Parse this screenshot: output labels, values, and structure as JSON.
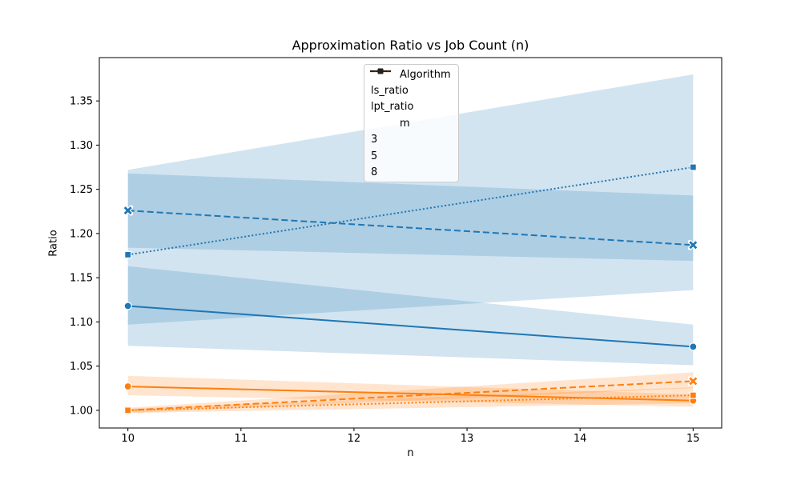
{
  "figure": {
    "background": "#ffffff"
  },
  "legend": {
    "algorithm_title": "Algorithm",
    "algorithms": [
      {
        "label": "ls_ratio",
        "color": "#1f77b4"
      },
      {
        "label": "lpt_ratio",
        "color": "#ff7f0e"
      }
    ],
    "m_title": "m",
    "m_entries": [
      {
        "label": "3",
        "linestyle": "solid",
        "marker": "circle"
      },
      {
        "label": "5",
        "linestyle": "dashed",
        "marker": "x"
      },
      {
        "label": "8",
        "linestyle": "dotted",
        "marker": "square"
      }
    ],
    "handle_color": "#222222",
    "border_color": "#cccccc"
  },
  "chart_data": {
    "type": "line",
    "title": "Approximation Ratio vs Job Count (n)",
    "xlabel": "n",
    "ylabel": "Ratio",
    "x": [
      10,
      15
    ],
    "xlim": [
      9.747,
      15.253
    ],
    "ylim": [
      0.98,
      1.399
    ],
    "xticks": [
      10,
      11,
      12,
      13,
      14,
      15
    ],
    "yticks": [
      1.0,
      1.05,
      1.1,
      1.15,
      1.2,
      1.25,
      1.3,
      1.35
    ],
    "grid": false,
    "legend_position": "upper center",
    "band_alpha": 0.2,
    "colors": {
      "ls_ratio": "#1f77b4",
      "lpt_ratio": "#ff7f0e"
    },
    "series": [
      {
        "name": "ls-ratio-m3",
        "algorithm": "ls_ratio",
        "m": 3,
        "color": "#1f77b4",
        "linestyle": "solid",
        "marker": "circle",
        "values": [
          1.118,
          1.072
        ],
        "ci_lower": [
          1.073,
          1.051
        ],
        "ci_upper": [
          1.163,
          1.097
        ]
      },
      {
        "name": "ls-ratio-m5",
        "algorithm": "ls_ratio",
        "m": 5,
        "color": "#1f77b4",
        "linestyle": "dashed",
        "marker": "x",
        "values": [
          1.226,
          1.187
        ],
        "ci_lower": [
          1.184,
          1.169
        ],
        "ci_upper": [
          1.268,
          1.243
        ]
      },
      {
        "name": "ls-ratio-m8",
        "algorithm": "ls_ratio",
        "m": 8,
        "color": "#1f77b4",
        "linestyle": "dotted",
        "marker": "square",
        "values": [
          1.176,
          1.275
        ],
        "ci_lower": [
          1.097,
          1.136
        ],
        "ci_upper": [
          1.272,
          1.38
        ]
      },
      {
        "name": "lpt-ratio-m3",
        "algorithm": "lpt_ratio",
        "m": 3,
        "color": "#ff7f0e",
        "linestyle": "solid",
        "marker": "circle",
        "values": [
          1.027,
          1.011
        ],
        "ci_lower": [
          1.017,
          1.004
        ],
        "ci_upper": [
          1.039,
          1.018
        ]
      },
      {
        "name": "lpt-ratio-m5",
        "algorithm": "lpt_ratio",
        "m": 5,
        "color": "#ff7f0e",
        "linestyle": "dashed",
        "marker": "x",
        "values": [
          1.0,
          1.033
        ],
        "ci_lower": [
          0.997,
          1.025
        ],
        "ci_upper": [
          1.003,
          1.043
        ]
      },
      {
        "name": "lpt-ratio-m8",
        "algorithm": "lpt_ratio",
        "m": 8,
        "color": "#ff7f0e",
        "linestyle": "dotted",
        "marker": "square",
        "values": [
          1.0,
          1.017
        ],
        "ci_lower": [
          0.997,
          1.008
        ],
        "ci_upper": [
          1.002,
          1.026
        ]
      }
    ]
  }
}
